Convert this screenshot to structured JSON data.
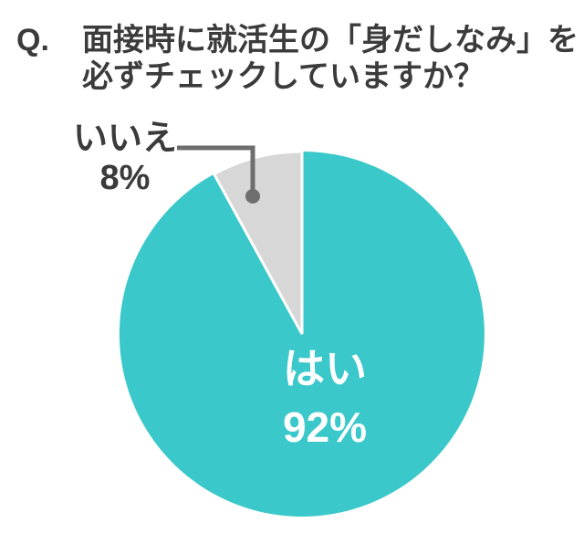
{
  "title": {
    "prefix": "Q.",
    "line1": "面接時に就活生の「身だしなみ」を",
    "line2": "必ずチェックしていますか？"
  },
  "chart_data": {
    "type": "pie",
    "question": "面接時に就活生の「身だしなみ」を必ずチェックしていますか？",
    "slices": [
      {
        "label": "はい",
        "value_pct": 92,
        "display_pct": "92%",
        "color": "#3BC8CA",
        "text_color": "#FFFFFF",
        "label_placement": "inside"
      },
      {
        "label": "いいえ",
        "value_pct": 8,
        "display_pct": "8%",
        "color": "#D7D7D7",
        "text_color": "#3B3B3B",
        "label_placement": "outside-top-left-with-leader-line"
      }
    ],
    "start_angle": "top",
    "direction": "clockwise",
    "legend": "none"
  },
  "colors": {
    "background": "#FFFFFF",
    "leader_line": "#6E6E6E",
    "title_text": "#3B3B3B"
  }
}
